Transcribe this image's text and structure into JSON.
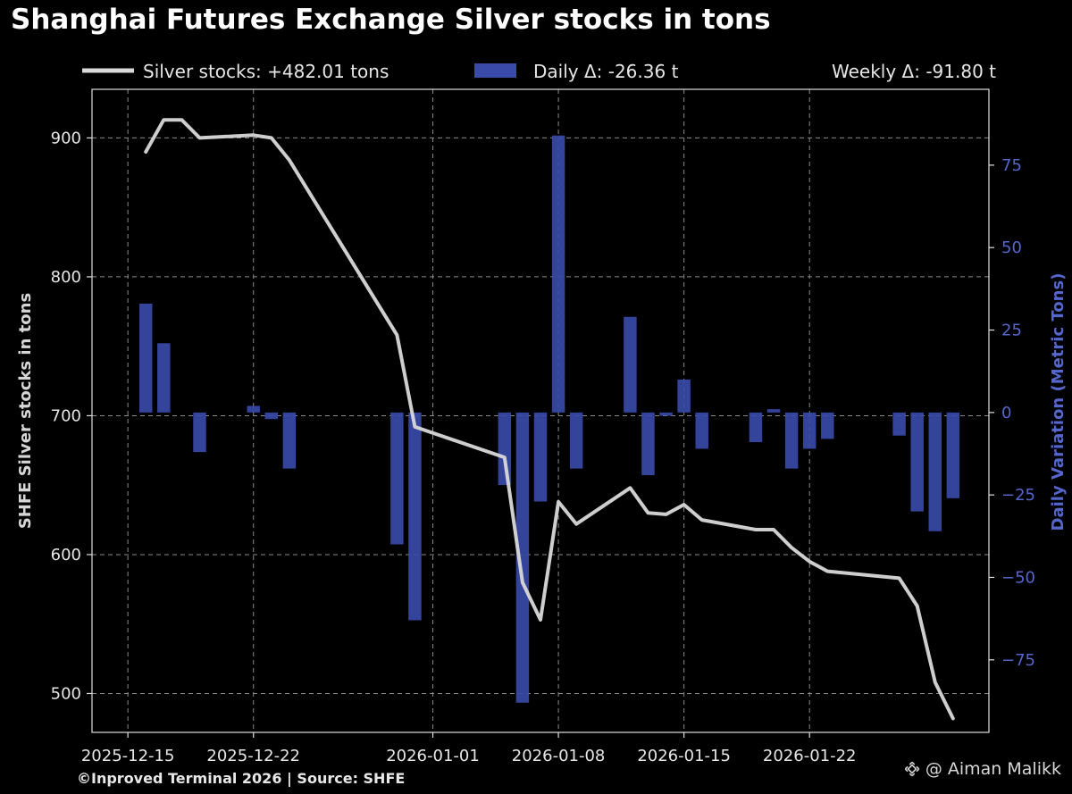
{
  "title": "Shanghai Futures Exchange Silver stocks in tons",
  "footer": {
    "source": "©Inproved Terminal 2026 | Source: SHFE",
    "watermark": "@ Aiman Malikk"
  },
  "colors": {
    "background": "#000000",
    "line": "#d9d9d9",
    "bars": "#3a4aa8",
    "right_axis": "#5566cc",
    "grid": "#8a8a8a"
  },
  "chart_data": {
    "type": "line",
    "title": "Shanghai Futures Exchange Silver stocks in tons",
    "grid": true,
    "legend_placement": "top",
    "legend": [
      {
        "label": "Silver stocks: +482.01 tons",
        "kind": "line"
      },
      {
        "label": "Daily Δ: -26.36 t",
        "kind": "bar"
      },
      {
        "label": "Weekly Δ: -91.80 t",
        "kind": "text"
      }
    ],
    "x_axis": {
      "type": "date",
      "range": [
        "2025-12-13",
        "2026-02-01"
      ],
      "ticks": [
        "2025-12-15",
        "2025-12-22",
        "2026-01-01",
        "2026-01-08",
        "2026-01-15",
        "2026-01-22"
      ]
    },
    "y_left": {
      "label": "SHFE Silver stocks in tons",
      "range": [
        472,
        935
      ],
      "ticks": [
        500,
        600,
        700,
        800,
        900
      ]
    },
    "y_right": {
      "label": "Daily Variation (Metric Tons)",
      "range": [
        -97,
        98
      ],
      "ticks": [
        -75,
        -50,
        -25,
        0,
        25,
        50,
        75
      ]
    },
    "series": [
      {
        "name": "Silver stocks: +482.01 tons",
        "type": "line",
        "axis": "left",
        "points": [
          [
            "2025-12-16",
            890
          ],
          [
            "2025-12-17",
            913
          ],
          [
            "2025-12-18",
            913
          ],
          [
            "2025-12-19",
            900
          ],
          [
            "2025-12-22",
            902
          ],
          [
            "2025-12-23",
            900
          ],
          [
            "2025-12-24",
            884
          ],
          [
            "2025-12-30",
            758
          ],
          [
            "2025-12-31",
            692
          ],
          [
            "2026-01-05",
            670
          ],
          [
            "2026-01-06",
            580
          ],
          [
            "2026-01-07",
            553
          ],
          [
            "2026-01-08",
            638
          ],
          [
            "2026-01-09",
            622
          ],
          [
            "2026-01-12",
            648
          ],
          [
            "2026-01-13",
            630
          ],
          [
            "2026-01-14",
            629
          ],
          [
            "2026-01-15",
            636
          ],
          [
            "2026-01-16",
            625
          ],
          [
            "2026-01-19",
            618
          ],
          [
            "2026-01-20",
            618
          ],
          [
            "2026-01-21",
            605
          ],
          [
            "2026-01-22",
            595
          ],
          [
            "2026-01-23",
            588
          ],
          [
            "2026-01-27",
            583
          ],
          [
            "2026-01-28",
            563
          ],
          [
            "2026-01-29",
            508
          ],
          [
            "2026-01-30",
            482
          ]
        ]
      },
      {
        "name": "Daily Δ: -26.36 t",
        "type": "bar",
        "axis": "right",
        "points": [
          [
            "2025-12-16",
            33
          ],
          [
            "2025-12-17",
            21
          ],
          [
            "2025-12-19",
            -12
          ],
          [
            "2025-12-22",
            2
          ],
          [
            "2025-12-23",
            -2
          ],
          [
            "2025-12-24",
            -17
          ],
          [
            "2025-12-30",
            -40
          ],
          [
            "2025-12-31",
            -63
          ],
          [
            "2026-01-05",
            -22
          ],
          [
            "2026-01-06",
            -88
          ],
          [
            "2026-01-07",
            -27
          ],
          [
            "2026-01-08",
            84
          ],
          [
            "2026-01-09",
            -17
          ],
          [
            "2026-01-12",
            29
          ],
          [
            "2026-01-13",
            -19
          ],
          [
            "2026-01-14",
            -1
          ],
          [
            "2026-01-15",
            10
          ],
          [
            "2026-01-16",
            -11
          ],
          [
            "2026-01-19",
            -9
          ],
          [
            "2026-01-20",
            1
          ],
          [
            "2026-01-21",
            -17
          ],
          [
            "2026-01-22",
            -11
          ],
          [
            "2026-01-23",
            -8
          ],
          [
            "2026-01-27",
            -7
          ],
          [
            "2026-01-28",
            -30
          ],
          [
            "2026-01-29",
            -36
          ],
          [
            "2026-01-30",
            -26
          ]
        ]
      }
    ]
  }
}
